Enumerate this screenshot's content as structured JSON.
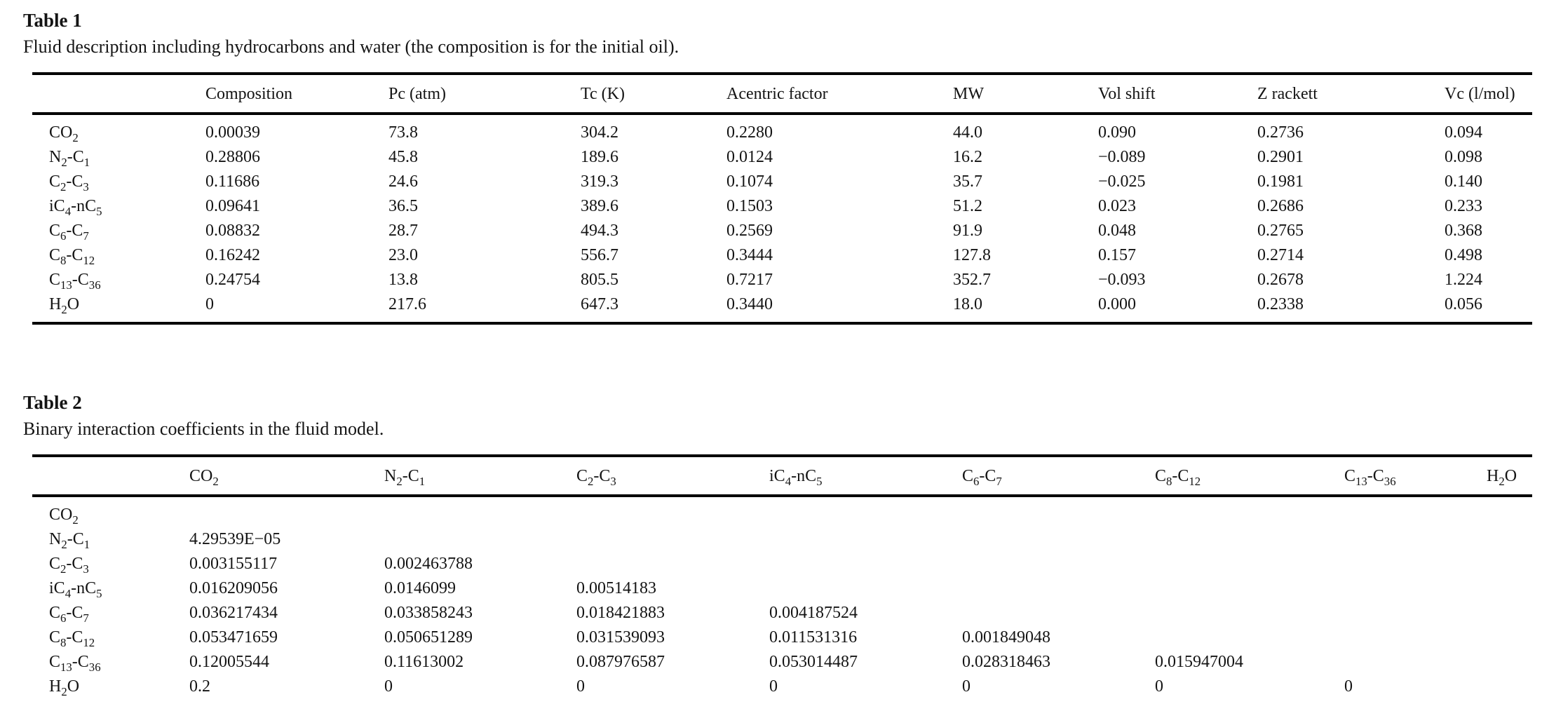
{
  "page": {
    "ink_color": "#141414",
    "background_color": "#ffffff"
  },
  "table1": {
    "label": "Table 1",
    "caption": "Fluid description including hydrocarbons and water (the composition is for the initial oil).",
    "columns": [
      "",
      "Composition",
      "Pc (atm)",
      "Tc (K)",
      "Acentric factor",
      "MW",
      "Vol shift",
      "Z rackett",
      "Vc (l/mol)"
    ],
    "rows": [
      {
        "component": "CO_2",
        "values": [
          "0.00039",
          "73.8",
          "304.2",
          "0.2280",
          "44.0",
          "0.090",
          "0.2736",
          "0.094"
        ]
      },
      {
        "component": "N_2-C_1",
        "values": [
          "0.28806",
          "45.8",
          "189.6",
          "0.0124",
          "16.2",
          "−0.089",
          "0.2901",
          "0.098"
        ]
      },
      {
        "component": "C_2-C_3",
        "values": [
          "0.11686",
          "24.6",
          "319.3",
          "0.1074",
          "35.7",
          "−0.025",
          "0.1981",
          "0.140"
        ]
      },
      {
        "component": "iC_4-nC_5",
        "values": [
          "0.09641",
          "36.5",
          "389.6",
          "0.1503",
          "51.2",
          "0.023",
          "0.2686",
          "0.233"
        ]
      },
      {
        "component": "C_6-C_7",
        "values": [
          "0.08832",
          "28.7",
          "494.3",
          "0.2569",
          "91.9",
          "0.048",
          "0.2765",
          "0.368"
        ]
      },
      {
        "component": "C_8-C_12",
        "values": [
          "0.16242",
          "23.0",
          "556.7",
          "0.3444",
          "127.8",
          "0.157",
          "0.2714",
          "0.498"
        ]
      },
      {
        "component": "C_13-C_36",
        "values": [
          "0.24754",
          "13.8",
          "805.5",
          "0.7217",
          "352.7",
          "−0.093",
          "0.2678",
          "1.224"
        ]
      },
      {
        "component": "H_2O",
        "values": [
          "0",
          "217.6",
          "647.3",
          "0.3440",
          "18.0",
          "0.000",
          "0.2338",
          "0.056"
        ]
      }
    ]
  },
  "table2": {
    "label": "Table 2",
    "caption": "Binary interaction coefficients in the fluid model.",
    "columns": [
      "",
      "CO_2",
      "N_2-C_1",
      "C_2-C_3",
      "iC_4-nC_5",
      "C_6-C_7",
      "C_8-C_12",
      "C_13-C_36",
      "H_2O"
    ],
    "rows": [
      {
        "component": "CO_2",
        "values": [
          "",
          "",
          "",
          "",
          "",
          "",
          "",
          ""
        ]
      },
      {
        "component": "N_2-C_1",
        "values": [
          "4.29539E−05",
          "",
          "",
          "",
          "",
          "",
          "",
          ""
        ]
      },
      {
        "component": "C_2-C_3",
        "values": [
          "0.003155117",
          "0.002463788",
          "",
          "",
          "",
          "",
          "",
          ""
        ]
      },
      {
        "component": "iC_4-nC_5",
        "values": [
          "0.016209056",
          "0.0146099",
          "0.00514183",
          "",
          "",
          "",
          "",
          ""
        ]
      },
      {
        "component": "C_6-C_7",
        "values": [
          "0.036217434",
          "0.033858243",
          "0.018421883",
          "0.004187524",
          "",
          "",
          "",
          ""
        ]
      },
      {
        "component": "C_8-C_12",
        "values": [
          "0.053471659",
          "0.050651289",
          "0.031539093",
          "0.011531316",
          "0.001849048",
          "",
          "",
          ""
        ]
      },
      {
        "component": "C_13-C_36",
        "values": [
          "0.12005544",
          "0.11613002",
          "0.087976587",
          "0.053014487",
          "0.028318463",
          "0.015947004",
          "",
          ""
        ]
      },
      {
        "component": "H_2O",
        "values": [
          "0.2",
          "0",
          "0",
          "0",
          "0",
          "0",
          "0",
          ""
        ]
      }
    ]
  }
}
